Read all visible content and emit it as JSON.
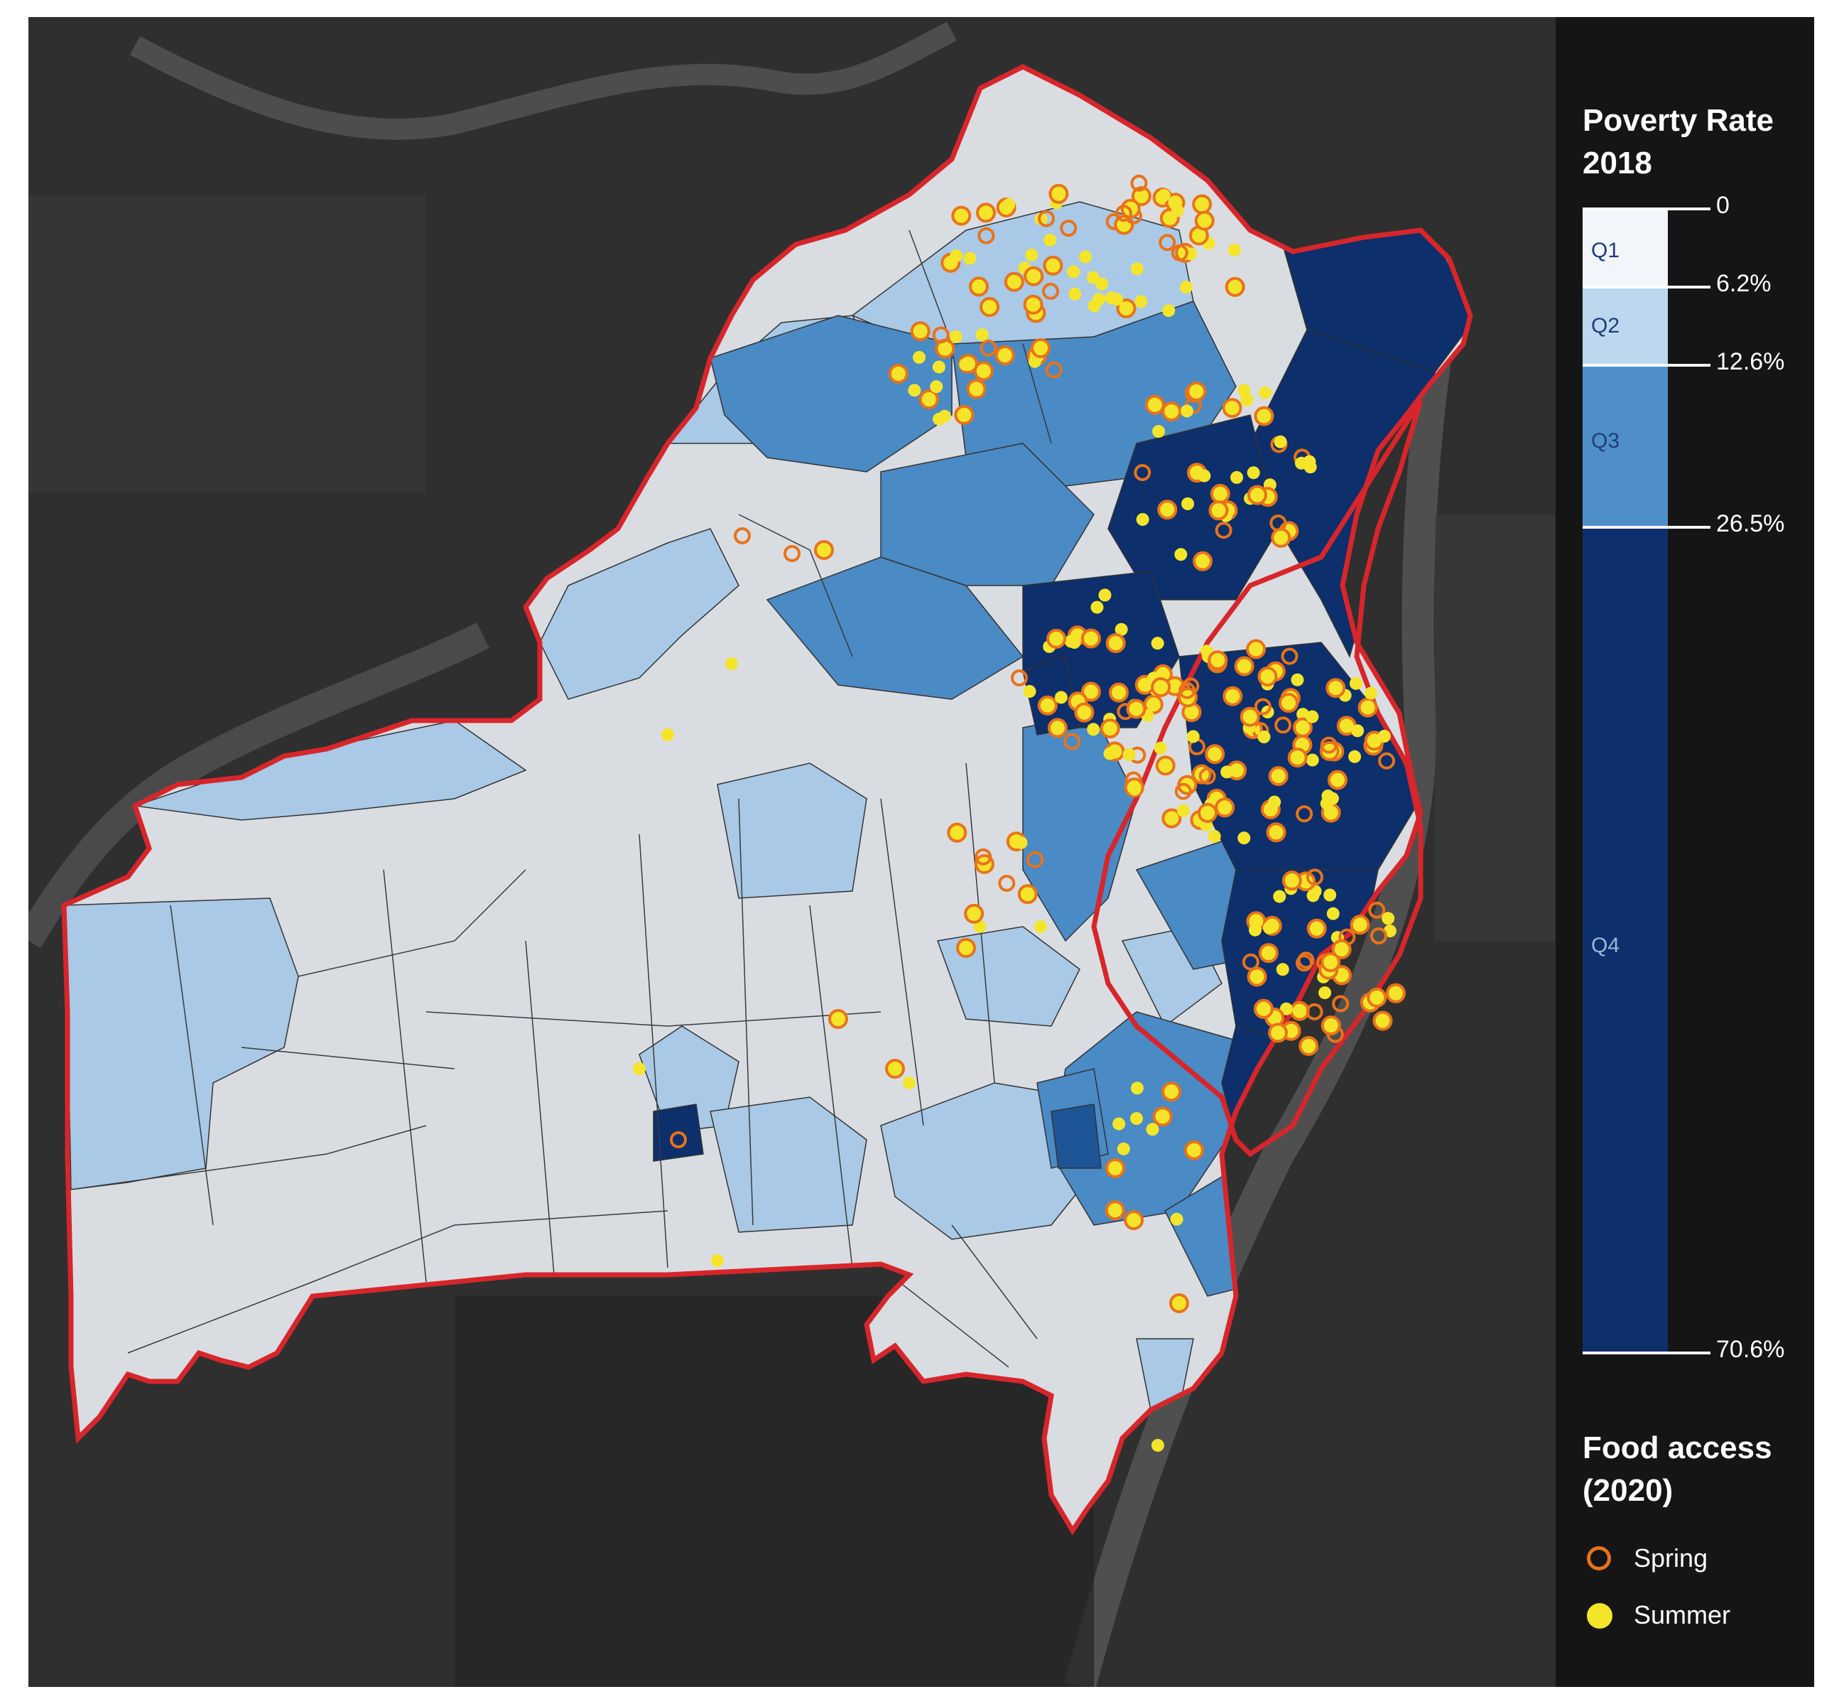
{
  "legend": {
    "poverty_title_line1": "Poverty Rate",
    "poverty_title_line2": "2018",
    "breaks": [
      "0",
      "6.2%",
      "12.6%",
      "26.5%",
      "70.6%"
    ],
    "classes": [
      {
        "label": "Q1",
        "color": "#f2f6fb",
        "text_color": "#1f3d7a"
      },
      {
        "label": "Q2",
        "color": "#bcd7ee",
        "text_color": "#1f3d7a"
      },
      {
        "label": "Q3",
        "color": "#4f8fc9",
        "text_color": "#1f3d7a"
      },
      {
        "label": "Q4",
        "color": "#0d2f6b",
        "text_color": "#9db6d8"
      }
    ],
    "food_title_line1": "Food access",
    "food_title_line2": "(2020)",
    "spring_label": "Spring",
    "summer_label": "Summer"
  },
  "colors": {
    "boundary": "#d7262b",
    "spring_marker": "#e8731a",
    "summer_marker": "#f5e52a",
    "satellite_bg": "#2b2b2b"
  }
}
